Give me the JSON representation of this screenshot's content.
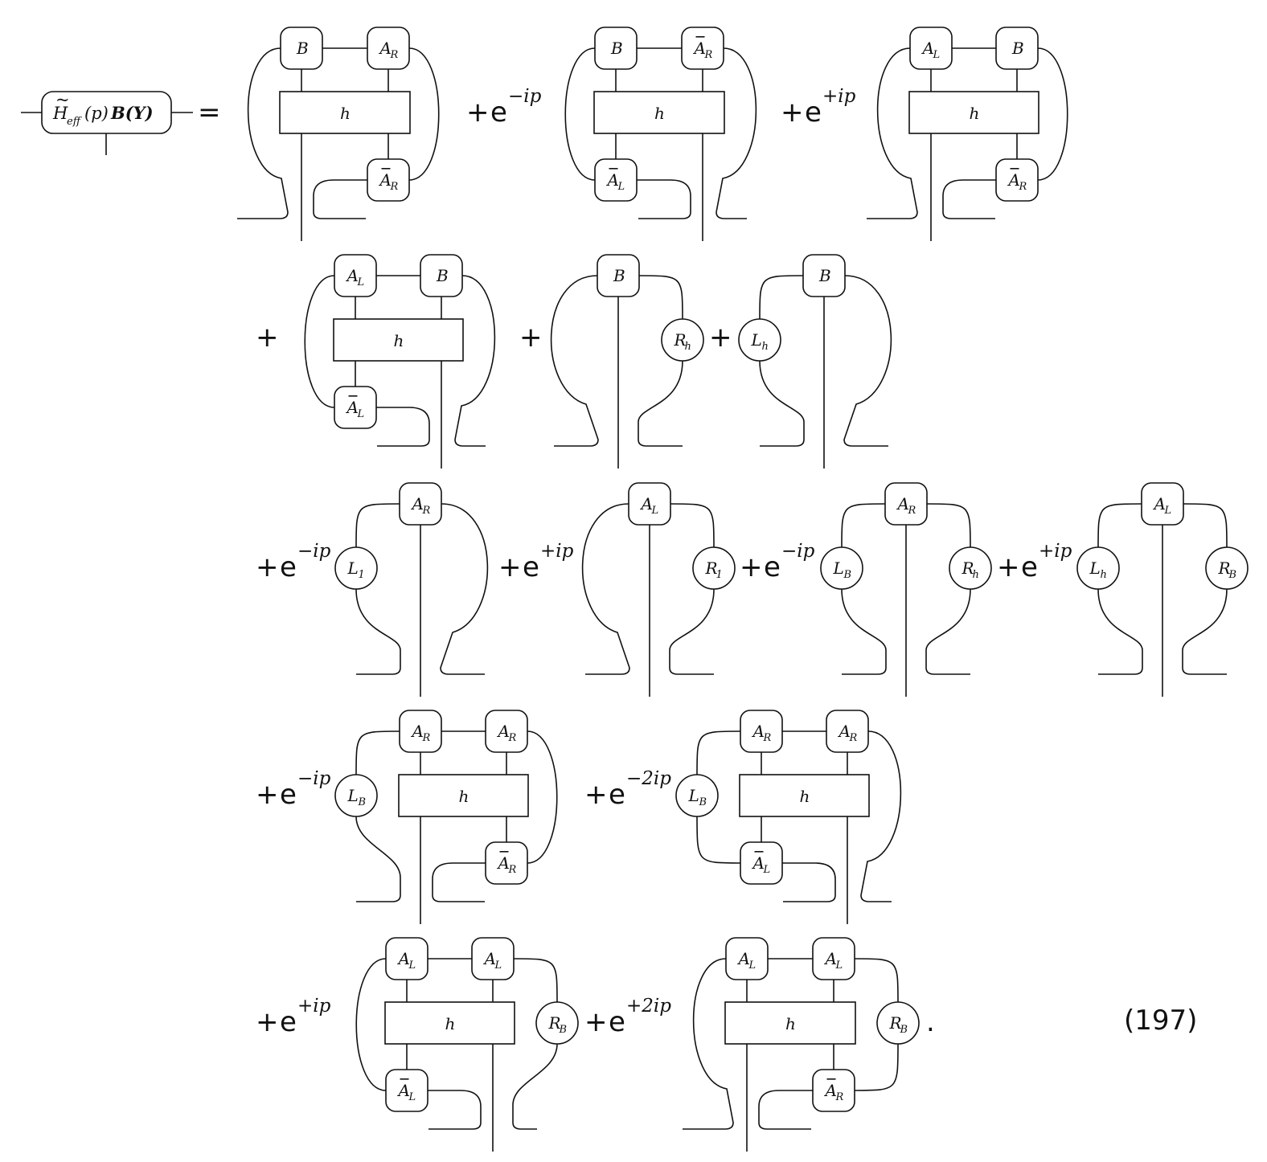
{
  "equation_number": "(197)",
  "final_punct": ".",
  "lhs": {
    "H": "H",
    "tilde": "~",
    "sub": "eff",
    "arg": "(p)",
    "operand": "B(Y)",
    "equals": "="
  },
  "symbols": {
    "h": "h",
    "B": "B",
    "A": "A",
    "L": "L",
    "R": "R",
    "R_h": {
      "base": "R",
      "sub": "h"
    },
    "L_h": {
      "base": "L",
      "sub": "h"
    },
    "L_1": {
      "base": "L",
      "sub": "1"
    },
    "R_1": {
      "base": "R",
      "sub": "1"
    },
    "L_B": {
      "base": "L",
      "sub": "B"
    },
    "R_B": {
      "base": "R",
      "sub": "B"
    },
    "sub_L": "L",
    "sub_R": "R"
  },
  "operators": {
    "plus": "+",
    "e": "e",
    "exp_minus_ip": "−ip",
    "exp_plus_ip": "+ip",
    "exp_minus_2ip": "−2ip",
    "exp_plus_2ip": "+2ip"
  },
  "terms": [
    {
      "row": 1,
      "kind": "two-site",
      "top": [
        "B",
        "AR"
      ],
      "bottom": "bar_AR",
      "bottom_side": "right",
      "prefactor": ""
    },
    {
      "row": 1,
      "kind": "two-site",
      "top": [
        "B",
        "bar_AR"
      ],
      "bottom": "bar_AL",
      "bottom_side": "left",
      "prefactor": "e^{−ip}"
    },
    {
      "row": 1,
      "kind": "two-site",
      "top": [
        "AL",
        "B"
      ],
      "bottom": "bar_AR",
      "bottom_side": "right",
      "prefactor": "e^{+ip}"
    },
    {
      "row": 2,
      "kind": "two-site",
      "top": [
        "AL",
        "B"
      ],
      "bottom": "bar_AL",
      "bottom_side": "left",
      "prefactor": "+"
    },
    {
      "row": 2,
      "kind": "environment",
      "center": "B",
      "right_env": "R_h",
      "prefactor": "+"
    },
    {
      "row": 2,
      "kind": "environment",
      "center": "B",
      "left_env": "L_h",
      "prefactor": "+"
    },
    {
      "row": 3,
      "kind": "environment",
      "center": "AR",
      "left_env": "L_1",
      "prefactor": "+e^{−ip}"
    },
    {
      "row": 3,
      "kind": "environment",
      "center": "AL",
      "right_env": "R_1",
      "prefactor": "+e^{+ip}"
    },
    {
      "row": 3,
      "kind": "environment",
      "center": "AR",
      "left_env": "L_B",
      "right_env": "R_h",
      "prefactor": "+e^{−ip}"
    },
    {
      "row": 3,
      "kind": "environment",
      "center": "AL",
      "left_env": "L_h",
      "right_env": "R_B",
      "prefactor": "+e^{+ip}"
    },
    {
      "row": 4,
      "kind": "two-site",
      "top": [
        "AR",
        "AR"
      ],
      "bottom": "bar_AR",
      "bottom_side": "right",
      "left_env": "L_B",
      "prefactor": "+e^{−ip}"
    },
    {
      "row": 4,
      "kind": "two-site",
      "top": [
        "AR",
        "AR"
      ],
      "bottom": "bar_AL",
      "bottom_side": "left",
      "left_env": "L_B",
      "prefactor": "+e^{−2ip}"
    },
    {
      "row": 5,
      "kind": "two-site",
      "top": [
        "AL",
        "AL"
      ],
      "bottom": "bar_AL",
      "bottom_side": "left",
      "right_env": "R_B",
      "prefactor": "+e^{+ip}"
    },
    {
      "row": 5,
      "kind": "two-site",
      "top": [
        "AL",
        "AL"
      ],
      "bottom": "bar_AR",
      "bottom_side": "right",
      "right_env": "R_B",
      "prefactor": "+e^{+2ip}"
    }
  ]
}
